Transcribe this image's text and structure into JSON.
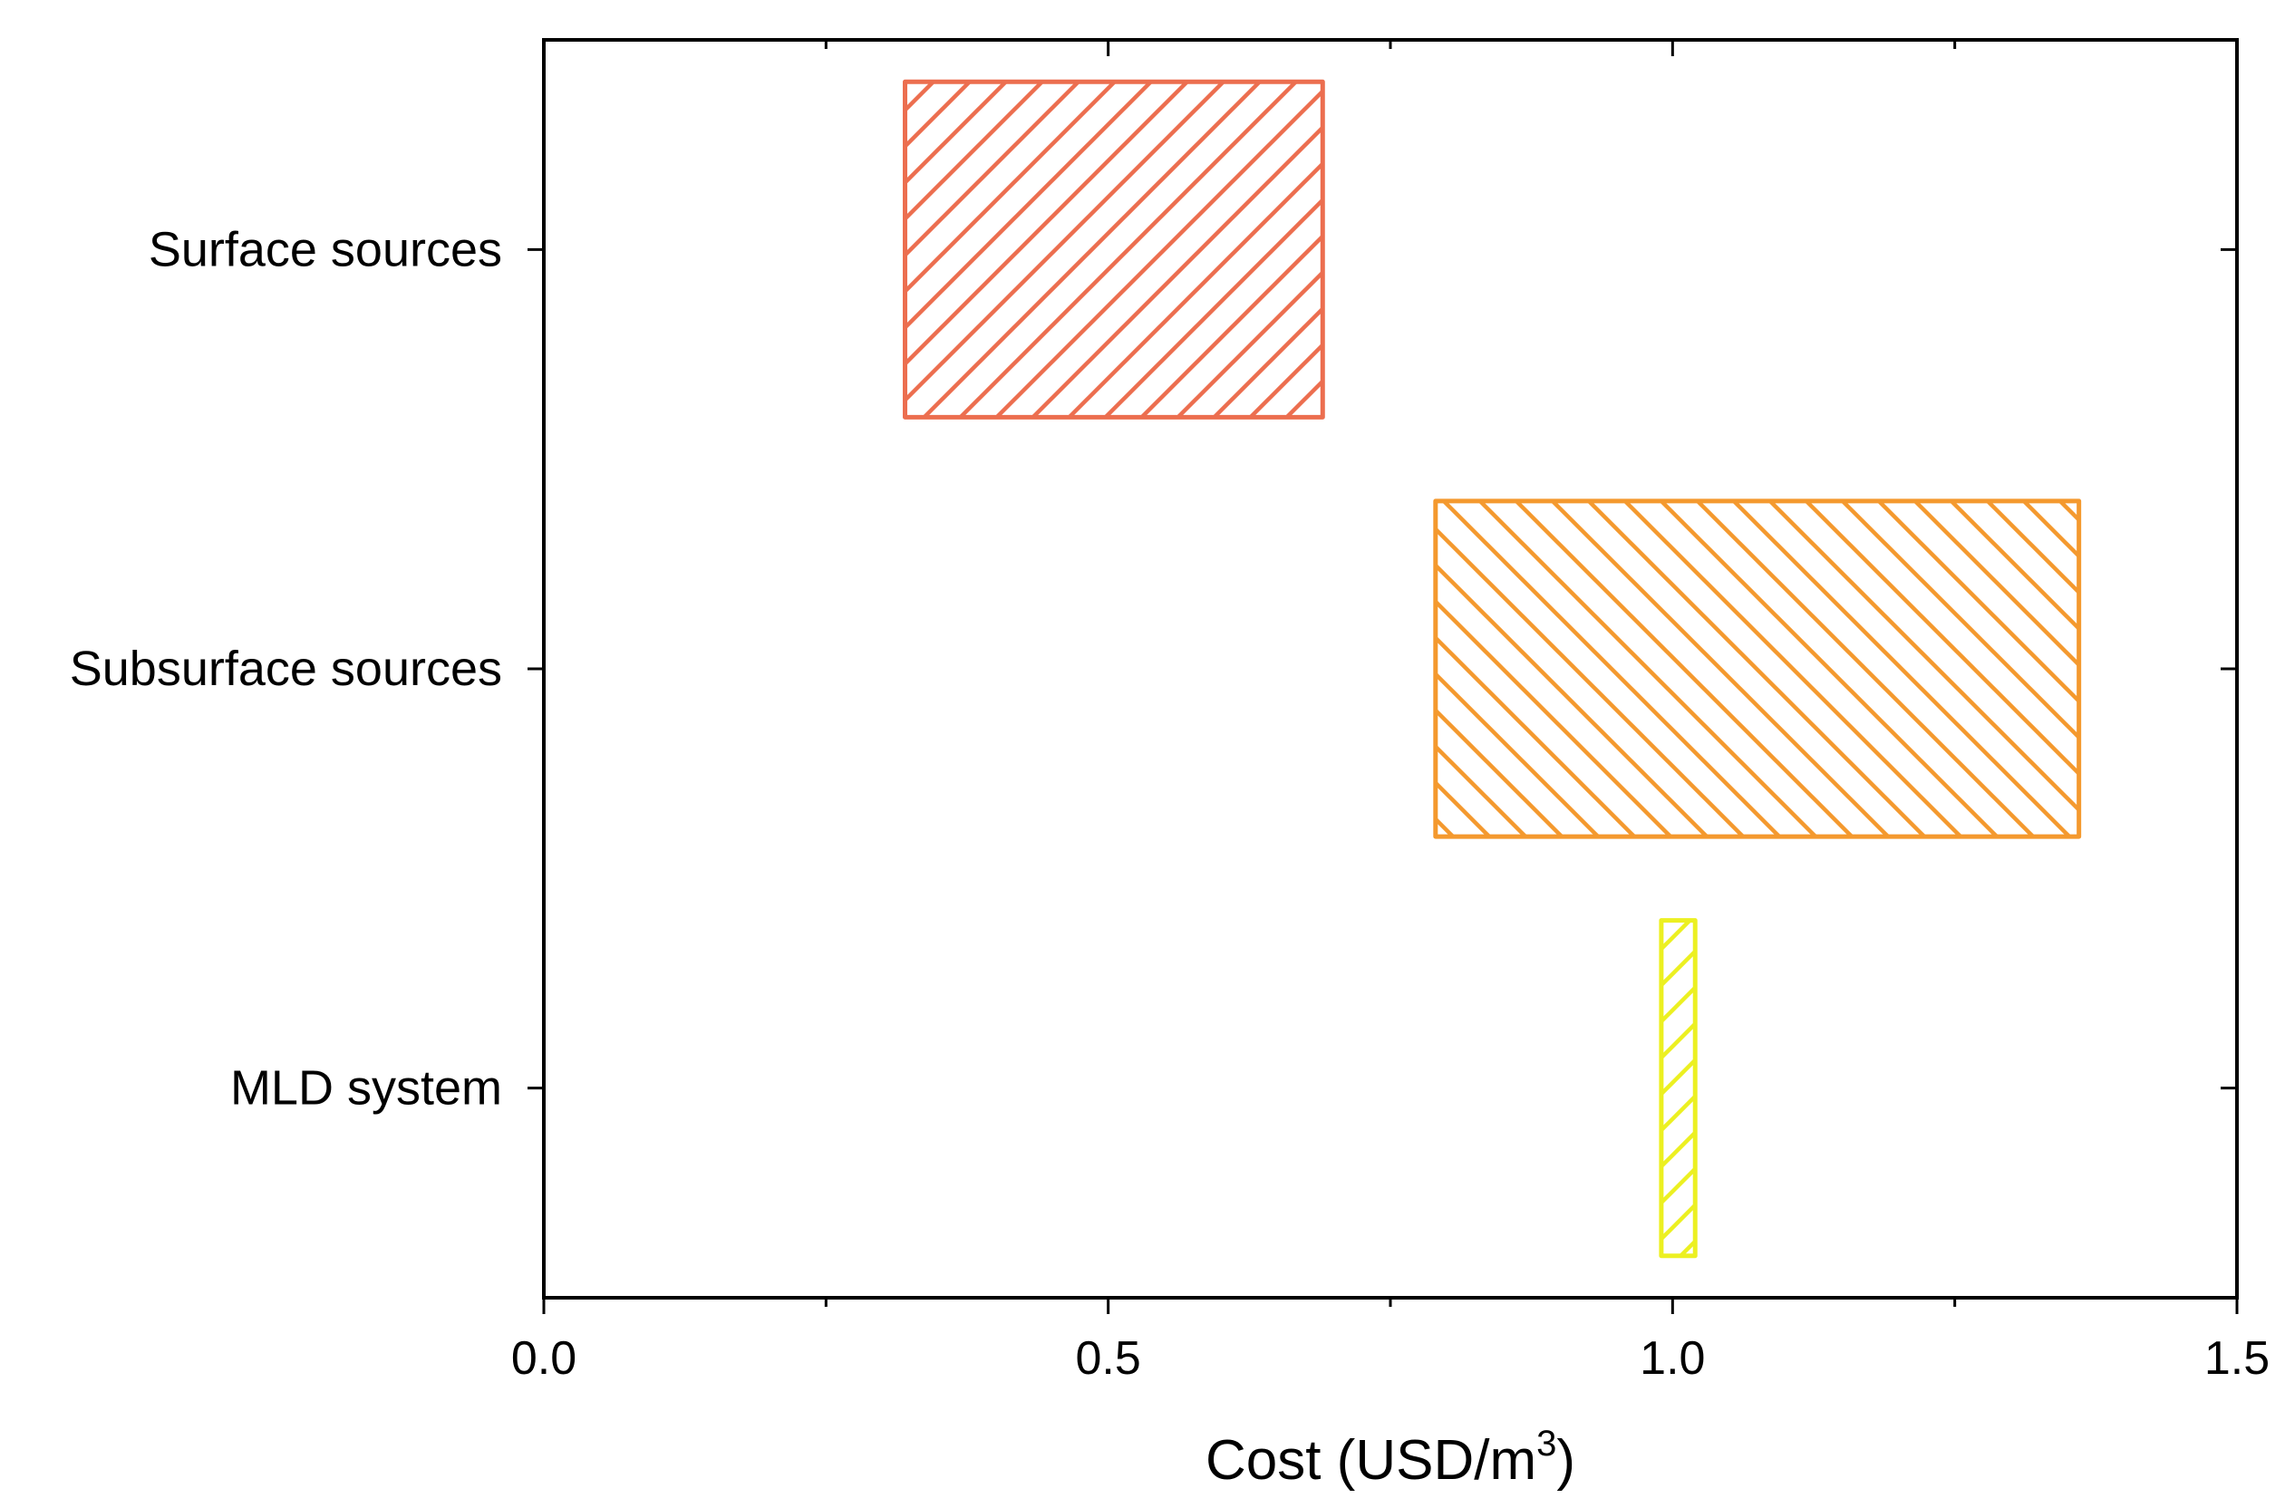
{
  "chart_data": {
    "type": "bar",
    "orientation": "horizontal",
    "style": "floating range bars with diagonal hatch",
    "categories": [
      "Surface sources",
      "Subsurface sources",
      "MLD system"
    ],
    "series": [
      {
        "ranges": [
          {
            "category": "Surface sources",
            "min": 0.32,
            "max": 0.69,
            "color": "#EC6E4F",
            "hatch": "forward"
          },
          {
            "category": "Subsurface sources",
            "min": 0.79,
            "max": 1.36,
            "color": "#F4992E",
            "hatch": "backward"
          },
          {
            "category": "MLD system",
            "min": 0.99,
            "max": 1.02,
            "color": "#ECF021",
            "hatch": "forward"
          }
        ]
      }
    ],
    "xlabel": {
      "base": "Cost (USD/m",
      "sup": "3",
      "tail": ")"
    },
    "xlim": [
      0.0,
      1.5
    ],
    "xticks": [
      "0.0",
      "0.5",
      "1.0",
      "1.5"
    ],
    "minor_xticks": [
      0.25,
      0.75,
      1.25
    ],
    "grid": false,
    "legend": "none"
  }
}
